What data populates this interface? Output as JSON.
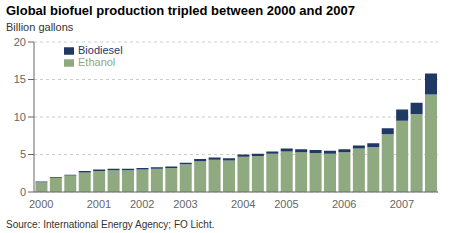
{
  "chart_data": {
    "type": "bar",
    "title": "Global biofuel production tripled between 2000 and 2007",
    "ylabel": "Billion gallons",
    "annotations": [
      "Source: International Energy Agency; FO Licht."
    ],
    "categories": [
      "2000",
      null,
      null,
      null,
      "2001",
      null,
      null,
      "2002",
      null,
      null,
      "2003",
      null,
      null,
      null,
      "2004",
      null,
      null,
      "2005",
      null,
      null,
      null,
      "2006",
      null,
      null,
      null,
      "2007",
      null,
      null
    ],
    "series": [
      {
        "name": "Ethanol",
        "color": "#8faa80",
        "values": [
          1.3,
          1.9,
          2.2,
          2.6,
          2.8,
          2.9,
          2.9,
          3.0,
          3.1,
          3.2,
          3.7,
          4.1,
          4.3,
          4.2,
          4.7,
          4.8,
          5.1,
          5.4,
          5.3,
          5.2,
          5.1,
          5.3,
          5.8,
          6.0,
          7.7,
          9.5,
          10.4,
          13.0
        ]
      },
      {
        "name": "Biodiesel",
        "color": "#1f3864",
        "values": [
          0.1,
          0.1,
          0.1,
          0.2,
          0.2,
          0.2,
          0.2,
          0.2,
          0.2,
          0.2,
          0.2,
          0.3,
          0.3,
          0.3,
          0.3,
          0.3,
          0.3,
          0.4,
          0.4,
          0.4,
          0.4,
          0.4,
          0.4,
          0.5,
          0.8,
          1.5,
          1.5,
          2.8
        ]
      }
    ],
    "stacked": true,
    "ylim": [
      0,
      20
    ],
    "yticks": [
      0,
      5,
      10,
      15,
      20
    ],
    "grid": true,
    "legend": "upper left"
  }
}
